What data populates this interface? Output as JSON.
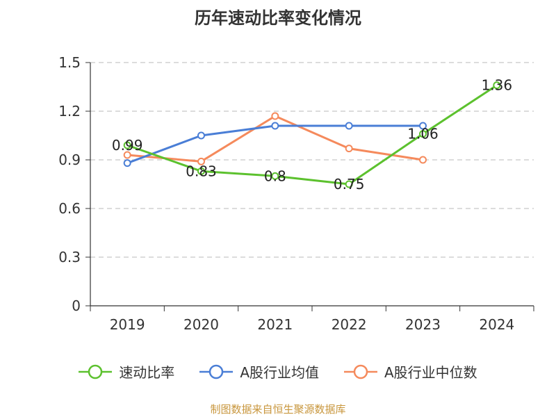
{
  "chart_data": {
    "type": "line",
    "title": "历年速动比率变化情况",
    "categories": [
      "2019",
      "2020",
      "2021",
      "2022",
      "2023",
      "2024"
    ],
    "y_ticks": [
      "0",
      "0.3",
      "0.6",
      "0.9",
      "1.2",
      "1.5"
    ],
    "ylim": [
      0,
      1.5
    ],
    "grid": true,
    "legend_position": "bottom",
    "series": [
      {
        "name": "速动比率",
        "color": "#5cc12e",
        "values": [
          0.99,
          0.83,
          0.8,
          0.75,
          1.06,
          1.36
        ],
        "labels": [
          "0.99",
          "0.83",
          "0.8",
          "0.75",
          "1.06",
          "1.36"
        ]
      },
      {
        "name": "A股行业均值",
        "color": "#4a7ed6",
        "values": [
          0.88,
          1.05,
          1.11,
          1.11,
          1.11,
          null
        ]
      },
      {
        "name": "A股行业中位数",
        "color": "#f58a5c",
        "values": [
          0.93,
          0.89,
          1.17,
          0.97,
          0.9,
          null
        ]
      }
    ]
  },
  "source_text": "制图数据来自恒生聚源数据库"
}
